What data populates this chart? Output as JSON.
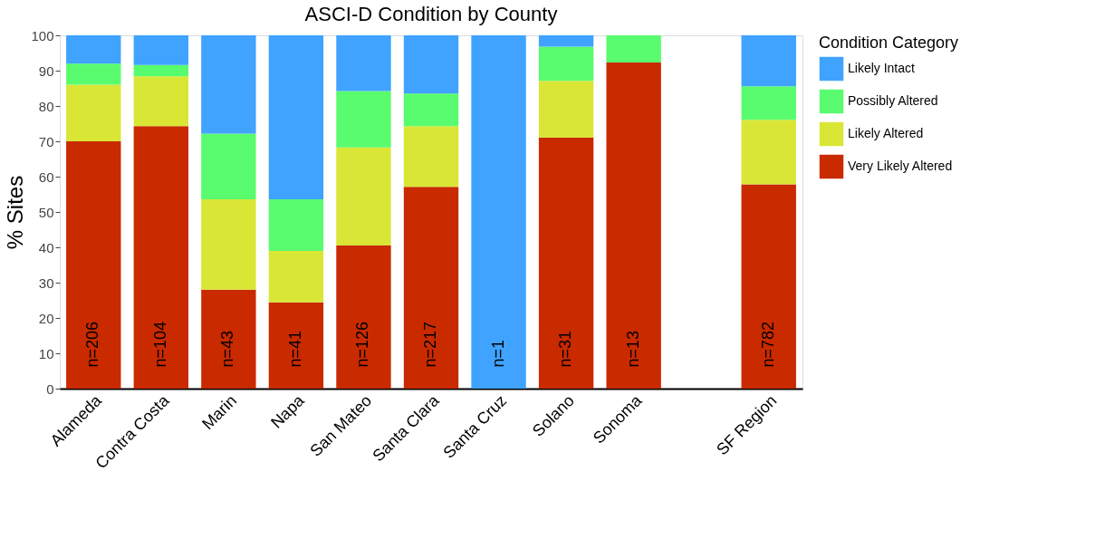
{
  "chart_data": {
    "type": "bar",
    "title": "ASCI-D Condition by County",
    "ylabel": "% Sites",
    "legend_title": "Condition Category",
    "categories": [
      "Alameda",
      "Contra Costa",
      "Marin",
      "Napa",
      "San Mateo",
      "Santa Clara",
      "Santa Cruz",
      "Solano",
      "Sonoma",
      null,
      "SF Region"
    ],
    "stacked": true,
    "series": [
      {
        "name": "Very Likely Altered",
        "color": "#c92a00",
        "values": [
          70,
          74.3,
          28,
          24.4,
          40.5,
          57.1,
          0,
          71,
          92.3,
          null,
          57.8
        ]
      },
      {
        "name": "Likely Altered",
        "color": "#d9e636",
        "values": [
          16,
          14.1,
          25.6,
          14.6,
          27.8,
          17.2,
          0,
          16.1,
          0,
          null,
          18.3
        ]
      },
      {
        "name": "Possibly Altered",
        "color": "#59fc6e",
        "values": [
          6,
          3.2,
          18.6,
          14.6,
          15.9,
          9.2,
          0,
          9.7,
          7.7,
          null,
          9.5
        ]
      },
      {
        "name": "Likely Intact",
        "color": "#3fa3ff",
        "values": [
          8,
          8.4,
          27.8,
          46.4,
          15.8,
          16.5,
          100,
          3.2,
          0,
          null,
          14.4
        ]
      }
    ],
    "ylim": [
      0,
      100
    ],
    "yticks": [
      0,
      10,
      20,
      30,
      40,
      50,
      60,
      70,
      80,
      90,
      100
    ],
    "grid": false,
    "legend": "right",
    "annotations": [
      "n=206",
      "n=104",
      "n=43",
      "n=41",
      "n=126",
      "n=217",
      "n=1",
      "n=31",
      "n=13",
      "n=782"
    ]
  }
}
